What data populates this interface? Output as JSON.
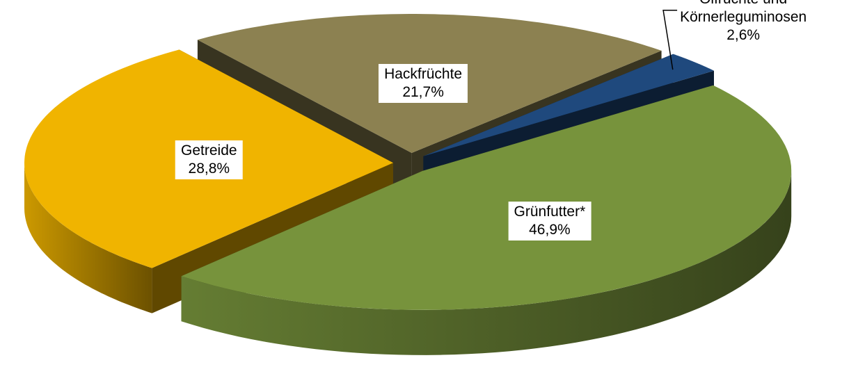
{
  "chart_data": {
    "type": "pie3d",
    "categories": [
      "Grünfutter*",
      "Getreide",
      "Hackfrüchte",
      "Ölfrüchte und Körnerleguminosen"
    ],
    "values": [
      46.9,
      28.8,
      21.7,
      2.6
    ],
    "value_labels": [
      "46,9%",
      "28,8%",
      "21,7%",
      "2,6%"
    ],
    "colors": [
      "#77933c",
      "#f0b400",
      "#8c8151",
      "#1f497d"
    ]
  }
}
